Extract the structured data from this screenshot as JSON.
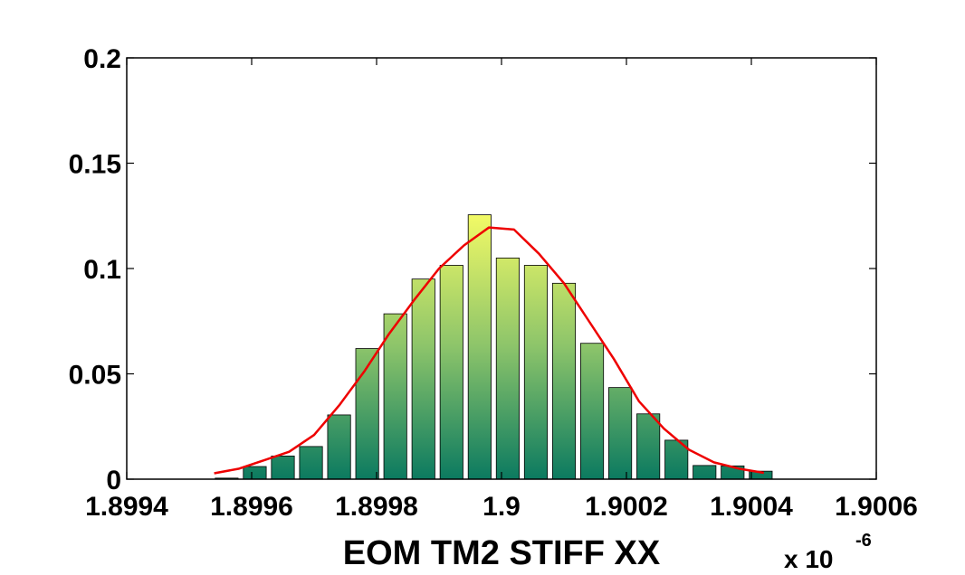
{
  "chart_data": {
    "type": "bar",
    "title": "",
    "xlabel": "EOM TM2 STIFF XX",
    "ylabel": "",
    "x_multiplier_label": "x 10",
    "x_multiplier_exponent": "-6",
    "xlim": [
      1.8994,
      1.9006
    ],
    "ylim": [
      0,
      0.2
    ],
    "xticks": [
      1.8994,
      1.8996,
      1.8998,
      1.9,
      1.9002,
      1.9004,
      1.9006
    ],
    "xtick_labels": [
      "1.8994",
      "1.8996",
      "1.8998",
      "1.9",
      "1.9002",
      "1.9004",
      "1.9006"
    ],
    "yticks": [
      0,
      0.05,
      0.1,
      0.15,
      0.2
    ],
    "ytick_labels": [
      "0",
      "0.05",
      "0.1",
      "0.15",
      "0.2"
    ],
    "grid": false,
    "bar_width": 3.67e-05,
    "bar_colormap": {
      "bottom": "#0b7a60",
      "middle": "#8cc46a",
      "top": "#f2fa66"
    },
    "series": [
      {
        "kind": "bar",
        "x": [
          1.89956,
          1.899605,
          1.89965,
          1.899695,
          1.89974,
          1.899785,
          1.89983,
          1.899875,
          1.89992,
          1.899965,
          1.90001,
          1.900055,
          1.9001,
          1.900145,
          1.90019,
          1.900235,
          1.90028,
          1.900325,
          1.90037,
          1.900415
        ],
        "values": [
          0.0005,
          0.006,
          0.011,
          0.0155,
          0.0305,
          0.062,
          0.0785,
          0.095,
          0.1015,
          0.1255,
          0.105,
          0.1015,
          0.093,
          0.0645,
          0.0435,
          0.031,
          0.0185,
          0.0065,
          0.0063,
          0.0038
        ]
      },
      {
        "kind": "line",
        "color": "#ee0000",
        "x": [
          1.89954,
          1.89958,
          1.89962,
          1.89966,
          1.8997,
          1.89974,
          1.89978,
          1.89982,
          1.89986,
          1.8999,
          1.89994,
          1.89998,
          1.90002,
          1.90006,
          1.9001,
          1.90014,
          1.90018,
          1.90022,
          1.90026,
          1.9003,
          1.90034,
          1.90038,
          1.90042
        ],
        "values": [
          0.0028,
          0.005,
          0.009,
          0.013,
          0.021,
          0.035,
          0.051,
          0.069,
          0.085,
          0.1,
          0.111,
          0.1195,
          0.1185,
          0.107,
          0.093,
          0.075,
          0.057,
          0.037,
          0.024,
          0.014,
          0.008,
          0.005,
          0.003
        ]
      }
    ]
  }
}
